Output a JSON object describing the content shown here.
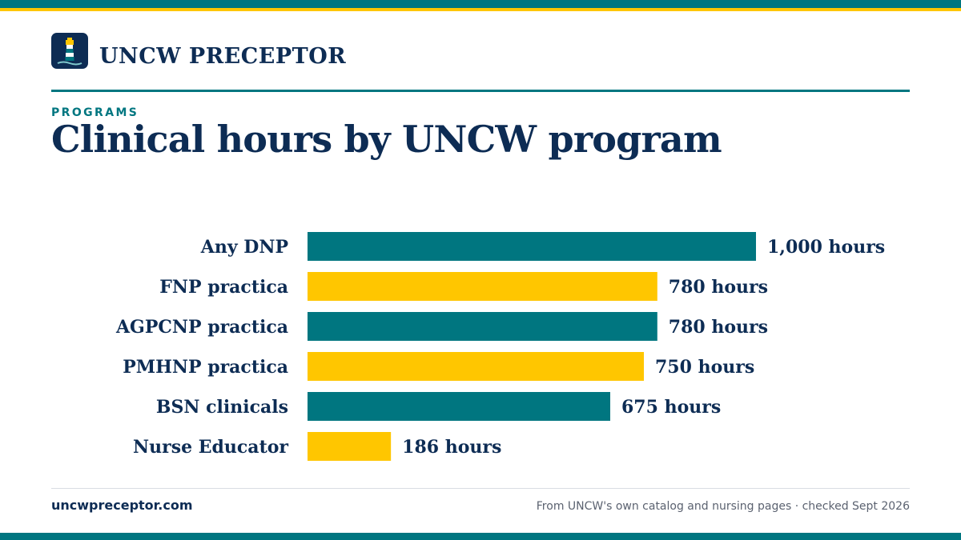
{
  "brand": {
    "name": "UNCW PRECEPTOR",
    "logo_icon": "lighthouse-icon"
  },
  "header": {
    "eyebrow": "PROGRAMS",
    "title": "Clinical hours by UNCW program"
  },
  "colors": {
    "navy": "#0d2c54",
    "teal": "#007680",
    "gold": "#ffc600",
    "muted": "#5b6270"
  },
  "chart_data": {
    "type": "bar",
    "orientation": "horizontal",
    "title": "Clinical hours by UNCW program",
    "categories": [
      "Any DNP",
      "FNP practica",
      "AGPCNP practica",
      "PMHNP practica",
      "BSN clinicals",
      "Nurse Educator"
    ],
    "values": [
      1000,
      780,
      780,
      750,
      675,
      186
    ],
    "value_labels": [
      "1,000 hours",
      "780 hours",
      "780 hours",
      "750 hours",
      "675 hours",
      "186 hours"
    ],
    "bar_colors": [
      "#007680",
      "#ffc600",
      "#007680",
      "#ffc600",
      "#007680",
      "#ffc600"
    ],
    "xlim": [
      0,
      1000
    ],
    "grid": false,
    "legend": "none"
  },
  "footer": {
    "site": "uncwpreceptor.com",
    "source": "From UNCW's own catalog and nursing pages · checked Sept 2026"
  }
}
